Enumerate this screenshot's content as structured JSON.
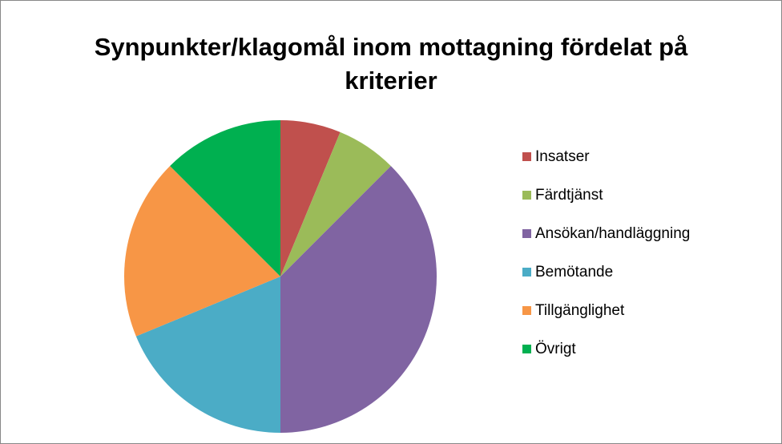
{
  "chart_data": {
    "type": "pie",
    "title": "Synpunkter/klagomål inom mottagning fördelat på kriterier",
    "categories": [
      "Insatser",
      "Färdtjänst",
      "Ansökan/handläggning",
      "Bemötande",
      "Tillgänglighet",
      "Övrigt"
    ],
    "values": [
      6.25,
      6.25,
      37.5,
      18.75,
      18.75,
      12.5
    ],
    "colors": [
      "#c0504d",
      "#9bbb59",
      "#8064a2",
      "#4bacc6",
      "#f79646",
      "#00b050"
    ],
    "legend": "right"
  }
}
